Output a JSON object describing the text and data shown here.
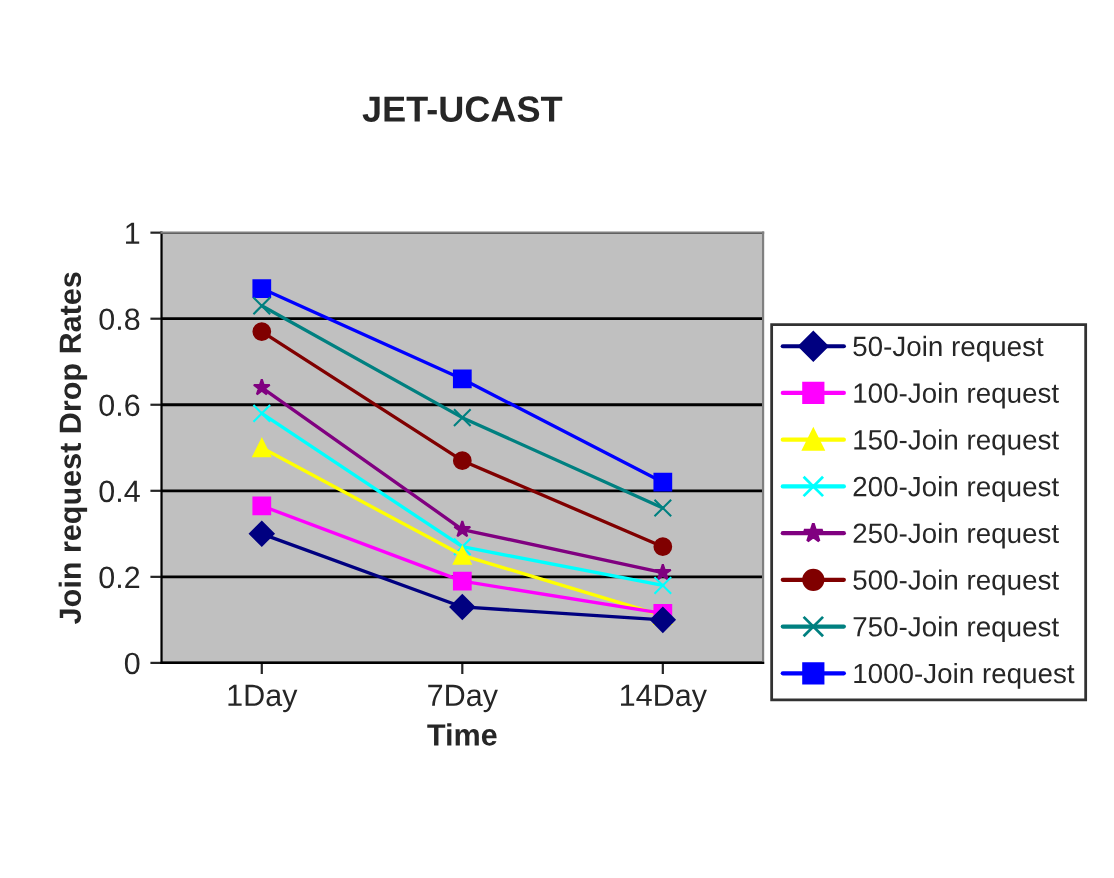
{
  "chart_data": {
    "type": "line",
    "title": "JET-UCAST",
    "xlabel": "Time",
    "ylabel": "Join request Drop Rates",
    "categories": [
      "1Day",
      "7Day",
      "14Day"
    ],
    "series": [
      {
        "name": "50-Join request",
        "color": "#000080",
        "marker": "diamond",
        "values": [
          0.3,
          0.13,
          0.1
        ]
      },
      {
        "name": "100-Join request",
        "color": "#ff00ff",
        "marker": "square",
        "values": [
          0.365,
          0.19,
          0.115
        ]
      },
      {
        "name": "150-Join request",
        "color": "#ffff00",
        "marker": "triangle",
        "values": [
          0.5,
          0.25,
          0.11
        ]
      },
      {
        "name": "200-Join request",
        "color": "#00ffff",
        "marker": "cross",
        "values": [
          0.58,
          0.27,
          0.18
        ]
      },
      {
        "name": "250-Join request",
        "color": "#800080",
        "marker": "star",
        "values": [
          0.64,
          0.31,
          0.21
        ]
      },
      {
        "name": "500-Join request",
        "color": "#800000",
        "marker": "circle",
        "values": [
          0.77,
          0.47,
          0.27
        ]
      },
      {
        "name": "750-Join request",
        "color": "#008080",
        "marker": "cross",
        "values": [
          0.83,
          0.57,
          0.36
        ]
      },
      {
        "name": "1000-Join request",
        "color": "#0000ff",
        "marker": "square",
        "values": [
          0.87,
          0.66,
          0.42
        ]
      }
    ],
    "ylim": [
      0,
      1
    ],
    "yticks": [
      0,
      0.2,
      0.4,
      0.6,
      0.8,
      1
    ],
    "grid": "y",
    "legend": "right"
  }
}
